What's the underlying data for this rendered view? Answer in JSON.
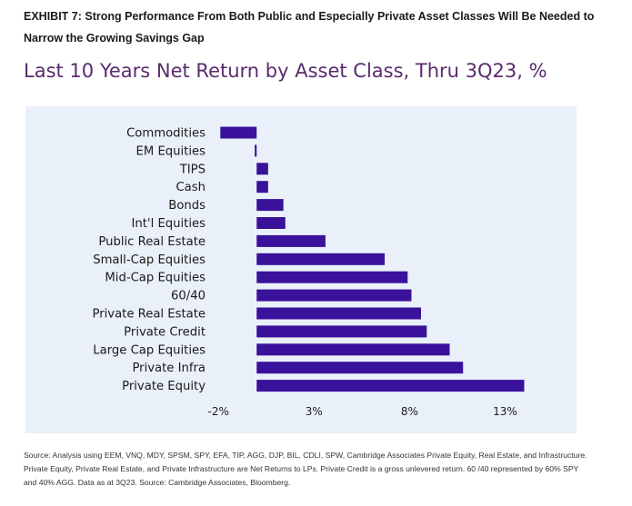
{
  "exhibit": {
    "heading": "EXHIBIT 7: Strong Performance From Both Public and Especially Private Asset Classes Will Be Needed to Narrow the Growing Savings Gap"
  },
  "chart_data": {
    "type": "bar",
    "orientation": "horizontal",
    "title": "Last 10 Years Net Return by Asset Class, Thru 3Q23, %",
    "categories": [
      "Commodities",
      "EM Equities",
      "TIPS",
      "Cash",
      "Bonds",
      "Int'l Equities",
      "Public Real Estate",
      "Small-Cap Equities",
      "Mid-Cap Equities",
      "60/40",
      "Private Real Estate",
      "Private Credit",
      "Large Cap Equities",
      "Private Infra",
      "Private Equity"
    ],
    "values": [
      -1.9,
      -0.1,
      0.6,
      0.6,
      1.4,
      1.5,
      3.6,
      6.7,
      7.9,
      8.1,
      8.6,
      8.9,
      10.1,
      10.8,
      14.0
    ],
    "xticks": [
      "-2%",
      "3%",
      "8%",
      "13%"
    ],
    "xtick_values": [
      -2,
      3,
      8,
      13
    ],
    "xlim": [
      -2.2,
      15.5
    ],
    "bar_color": "#3a119a",
    "background_color": "#e9f0f9",
    "grid": false,
    "legend": "none"
  },
  "footer": {
    "source": "Source: Analysis using EEM, VNQ, MDY, SPSM, SPY, EFA, TIP, AGG, DJP, BIL, CDLI, SPW, Cambridge Associates Private Equity, Real Estate, and Infrastructure. Private Equity, Private Real Estate, and Private Infrastructure are Net Returns to LPs. Private Credit is a gross unlevered return. 60 /40 represented by 60% SPY and 40% AGG. Data as at 3Q23. Source: Cambridge Associates, Bloomberg."
  }
}
